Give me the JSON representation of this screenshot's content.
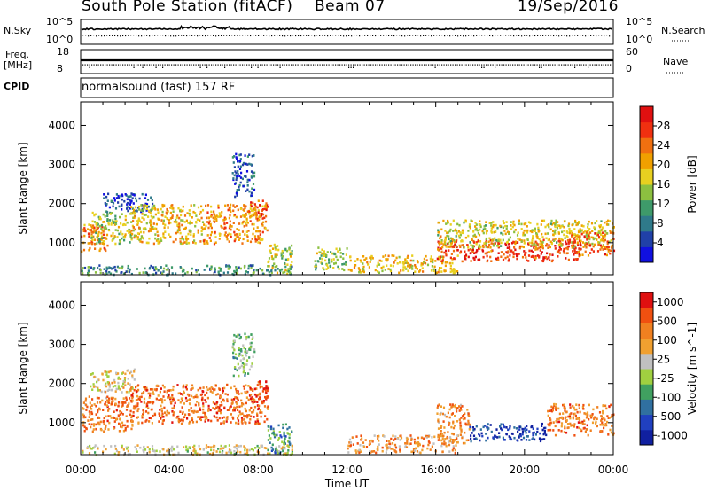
{
  "header": {
    "station": "South Pole Station (fitACF)",
    "beam": "Beam 07",
    "date": "19/Sep/2016"
  },
  "status_panels": {
    "nsky_label": "N.Sky",
    "nsearch_label": "N.Search",
    "freq_label": "Freq.",
    "freq_unit": "[MHz]",
    "nave_label": "Nave",
    "cpid_label": "CPID",
    "cpid_text": "normalsound (fast) 157 RF",
    "noise_ticks": [
      "10^5",
      "10^0"
    ],
    "freq_ticks": [
      "18",
      "8"
    ],
    "nave_ticks": [
      "60",
      "0"
    ]
  },
  "colors": {
    "power_scale": [
      "#1010e0",
      "#2040a8",
      "#2f7a8a",
      "#3e9a6a",
      "#8cc040",
      "#e8d020",
      "#f0a000",
      "#f07010",
      "#f03010",
      "#e01010"
    ],
    "velocity_scale": [
      "#e01010",
      "#f05010",
      "#f08020",
      "#f0a030",
      "#c0c0c0",
      "#a0d040",
      "#40a060",
      "#3070a0",
      "#2040c0",
      "#1020a0"
    ]
  },
  "chart_data": [
    {
      "type": "heatmap",
      "title": "",
      "xlabel": "Time UT",
      "ylabel": "Slant Range [km]",
      "x_ticks": [
        "00:00",
        "04:00",
        "08:00",
        "12:00",
        "16:00",
        "20:00",
        "00:00"
      ],
      "y_ticks": [
        1000,
        2000,
        3000,
        4000
      ],
      "xlim_hours": [
        0,
        24
      ],
      "ylim_km": [
        180,
        4600
      ],
      "colorbar_label": "Power [dB]",
      "colorbar_ticks": [
        4,
        8,
        12,
        16,
        20,
        24,
        28
      ],
      "colorbar_range": [
        0,
        32
      ],
      "regions": [
        {
          "t0": 0.0,
          "t1": 1.2,
          "r0": 800,
          "r1": 1500,
          "level": 0.75
        },
        {
          "t0": 0.4,
          "t1": 2.4,
          "r0": 1000,
          "r1": 1800,
          "level": 0.5
        },
        {
          "t0": 1.0,
          "t1": 3.2,
          "r0": 1800,
          "r1": 2300,
          "level": 0.12
        },
        {
          "t0": 2.2,
          "t1": 5.5,
          "r0": 1000,
          "r1": 2000,
          "level": 0.62
        },
        {
          "t0": 5.5,
          "t1": 8.4,
          "r0": 1000,
          "r1": 2000,
          "level": 0.72
        },
        {
          "t0": 7.6,
          "t1": 8.4,
          "r0": 1600,
          "r1": 2100,
          "level": 0.85
        },
        {
          "t0": 6.8,
          "t1": 7.8,
          "r0": 2200,
          "r1": 3300,
          "level": 0.15
        },
        {
          "t0": 8.4,
          "t1": 9.5,
          "r0": 200,
          "r1": 1000,
          "level": 0.5
        },
        {
          "t0": 10.5,
          "t1": 12.0,
          "r0": 300,
          "r1": 900,
          "level": 0.45
        },
        {
          "t0": 12.0,
          "t1": 17.0,
          "r0": 250,
          "r1": 700,
          "level": 0.6
        },
        {
          "t0": 16.0,
          "t1": 22.5,
          "r0": 550,
          "r1": 1100,
          "level": 0.88
        },
        {
          "t0": 16.0,
          "t1": 24.0,
          "r0": 900,
          "r1": 1600,
          "level": 0.55
        },
        {
          "t0": 22.0,
          "t1": 24.0,
          "r0": 700,
          "r1": 1300,
          "level": 0.8
        },
        {
          "t0": 0.0,
          "t1": 9.5,
          "r0": 200,
          "r1": 450,
          "level": 0.3
        }
      ]
    },
    {
      "type": "heatmap",
      "title": "",
      "xlabel": "Time UT",
      "ylabel": "Slant Range [km]",
      "x_ticks": [
        "00:00",
        "04:00",
        "08:00",
        "12:00",
        "16:00",
        "20:00",
        "00:00"
      ],
      "y_ticks": [
        1000,
        2000,
        3000,
        4000
      ],
      "xlim_hours": [
        0,
        24
      ],
      "ylim_km": [
        180,
        4600
      ],
      "colorbar_label": "Velocity [m s^-1]",
      "colorbar_ticks": [
        "1000",
        "500",
        "100",
        "25",
        "-25",
        "-100",
        "-500",
        "-1000"
      ],
      "regions": [
        {
          "t0": 0.0,
          "t1": 2.4,
          "r0": 800,
          "r1": 1700,
          "level": 0.22
        },
        {
          "t0": 0.4,
          "t1": 2.4,
          "r0": 1800,
          "r1": 2400,
          "level": 0.42
        },
        {
          "t0": 2.2,
          "t1": 8.4,
          "r0": 1000,
          "r1": 2000,
          "level": 0.18
        },
        {
          "t0": 7.6,
          "t1": 8.4,
          "r0": 1500,
          "r1": 2100,
          "level": 0.08
        },
        {
          "t0": 6.8,
          "t1": 7.8,
          "r0": 2200,
          "r1": 3300,
          "level": 0.6
        },
        {
          "t0": 8.4,
          "t1": 9.5,
          "r0": 200,
          "r1": 1000,
          "level": 0.7
        },
        {
          "t0": 12.0,
          "t1": 17.0,
          "r0": 250,
          "r1": 700,
          "level": 0.28
        },
        {
          "t0": 16.0,
          "t1": 17.5,
          "r0": 500,
          "r1": 1500,
          "level": 0.25
        },
        {
          "t0": 17.5,
          "t1": 21.0,
          "r0": 550,
          "r1": 1000,
          "level": 0.93
        },
        {
          "t0": 21.0,
          "t1": 24.0,
          "r0": 700,
          "r1": 1500,
          "level": 0.2
        },
        {
          "t0": 0.0,
          "t1": 9.5,
          "r0": 200,
          "r1": 450,
          "level": 0.45
        }
      ]
    }
  ]
}
